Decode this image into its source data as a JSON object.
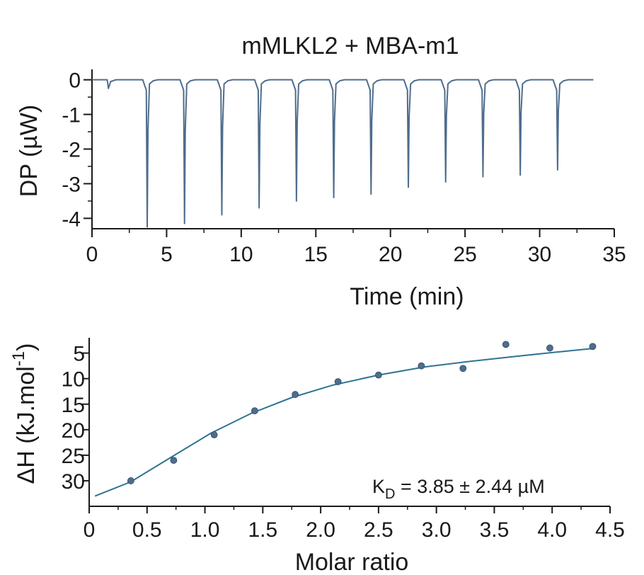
{
  "chart_data": [
    {
      "type": "line",
      "title": "mMLKL2 + MBA-m1",
      "xlabel": "Time (min)",
      "ylabel": "DP (µW)",
      "xlim": [
        0,
        35
      ],
      "ylim": [
        -4.3,
        0.3
      ],
      "x_ticks": [
        0,
        5,
        10,
        15,
        20,
        25,
        30,
        35
      ],
      "y_ticks": [
        0,
        -1,
        -2,
        -3,
        -4
      ],
      "grid": false,
      "color": "#4f6d8c",
      "baseline": 0,
      "trace_end_time": 33.6,
      "initial_small_injection": {
        "time": 1.1,
        "min_dp": -0.25
      },
      "injection_peaks": {
        "time": [
          3.7,
          6.2,
          8.7,
          11.2,
          13.7,
          16.2,
          18.7,
          21.2,
          23.7,
          26.2,
          28.7,
          31.2
        ],
        "min_dp": [
          -4.25,
          -4.15,
          -3.9,
          -3.7,
          -3.5,
          -3.4,
          -3.3,
          -3.1,
          -2.95,
          -2.8,
          -2.75,
          -2.6
        ]
      }
    },
    {
      "type": "scatter",
      "xlabel": "Molar ratio",
      "ylabel": "ΔH (kJ.mol⁻¹)",
      "ylabel_parts": {
        "main": "ΔH (kJ.mol",
        "superscript": "-1",
        "close": ")"
      },
      "xlim": [
        0,
        4.5
      ],
      "ylim": [
        2,
        35
      ],
      "y_inverted": true,
      "x_ticks": [
        0,
        0.5,
        1.0,
        1.5,
        2.0,
        2.5,
        3.0,
        3.5,
        4.0,
        4.5
      ],
      "x_tick_labels": [
        "0",
        "0.5",
        "1.0",
        "1.5",
        "2.0",
        "2.5",
        "3.0",
        "3.5",
        "4.0",
        "4.5"
      ],
      "y_ticks": [
        5,
        10,
        15,
        20,
        25,
        30
      ],
      "grid": false,
      "point_color": "#4f6d8c",
      "fit_color": "#2e7391",
      "series": [
        {
          "x": [
            0.36,
            0.73,
            1.08,
            1.43,
            1.78,
            2.15,
            2.5,
            2.87,
            3.23,
            3.6,
            3.98,
            4.35
          ],
          "y": [
            30.0,
            26.0,
            21.0,
            16.3,
            13.1,
            10.6,
            9.3,
            7.5,
            8.0,
            3.3,
            4.0,
            3.7
          ]
        }
      ],
      "fit": {
        "x": [
          0.05,
          0.36,
          0.7,
          1.05,
          1.4,
          1.75,
          2.1,
          2.5,
          2.9,
          3.3,
          3.7,
          4.0,
          4.35
        ],
        "y": [
          33.0,
          30.2,
          25.5,
          20.7,
          16.8,
          13.7,
          11.3,
          9.3,
          7.7,
          6.6,
          5.6,
          4.9,
          4.1
        ]
      },
      "annotation": {
        "prefix": "K",
        "subscript": "D",
        "rest": " = 3.85 ± 2.44 µM"
      }
    }
  ]
}
